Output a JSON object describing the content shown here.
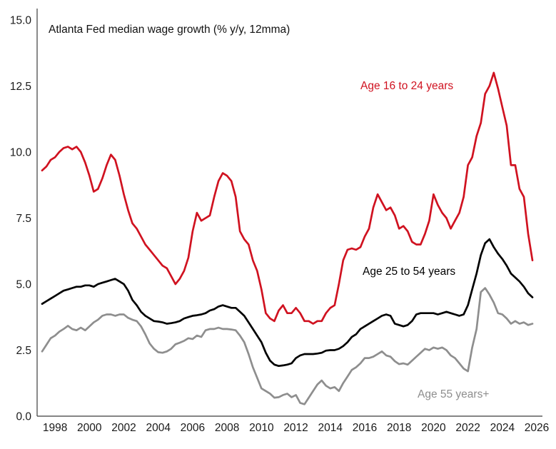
{
  "chart": {
    "title": "Atlanta Fed median wage growth (% y/y, 12mma)",
    "series_labels": {
      "age_16_24": "Age 16 to 24 years",
      "age_25_54": "Age 25 to 54 years",
      "age_55_plus": "Age 55 years+"
    },
    "colors": {
      "age_16_24": "#d01220",
      "age_25_54": "#000000",
      "age_55_plus": "#8e8e8e",
      "axis": "#3c3c3c",
      "background": "#ffffff"
    }
  },
  "chart_data": {
    "type": "line",
    "title": "Atlanta Fed median wage growth (% y/y, 12mma)",
    "xlabel": "",
    "ylabel": "",
    "xlim": [
      1996.96,
      2026.33
    ],
    "ylim": [
      0,
      15.43
    ],
    "grid": false,
    "legend_position": "inline-annotations",
    "x_ticks": [
      1998,
      2000,
      2002,
      2004,
      2006,
      2008,
      2010,
      2012,
      2014,
      2016,
      2018,
      2020,
      2022,
      2024,
      2026
    ],
    "x_tick_labels": [
      "1998",
      "2000",
      "2002",
      "2004",
      "2006",
      "2008",
      "2010",
      "2012",
      "2014",
      "2016",
      "2018",
      "2020",
      "2022",
      "2024",
      "2026"
    ],
    "y_ticks": [
      0.0,
      2.5,
      5.0,
      7.5,
      10.0,
      12.5,
      15.0
    ],
    "y_tick_labels": [
      "0.0",
      "2.5",
      "5.0",
      "7.5",
      "10.0",
      "12.5",
      "15.0"
    ],
    "x_start": 1997.25,
    "x_step": 0.25,
    "series": [
      {
        "name": "Age 16 to 24 years",
        "color": "#d01220",
        "values": [
          9.3,
          9.45,
          9.7,
          9.8,
          10.0,
          10.15,
          10.2,
          10.1,
          10.2,
          10.0,
          9.6,
          9.1,
          8.5,
          8.6,
          9.0,
          9.5,
          9.9,
          9.7,
          9.1,
          8.4,
          7.8,
          7.3,
          7.1,
          6.8,
          6.5,
          6.3,
          6.1,
          5.9,
          5.7,
          5.6,
          5.3,
          5.0,
          5.2,
          5.5,
          6.0,
          7.0,
          7.7,
          7.4,
          7.5,
          7.6,
          8.3,
          8.9,
          9.2,
          9.1,
          8.9,
          8.3,
          7.0,
          6.7,
          6.5,
          5.9,
          5.5,
          4.8,
          3.9,
          3.7,
          3.6,
          4.0,
          4.2,
          3.9,
          3.9,
          4.1,
          3.9,
          3.6,
          3.6,
          3.5,
          3.6,
          3.6,
          3.9,
          4.1,
          4.2,
          5.0,
          5.9,
          6.3,
          6.35,
          6.3,
          6.4,
          6.8,
          7.1,
          7.9,
          8.4,
          8.1,
          7.8,
          7.9,
          7.6,
          7.1,
          7.2,
          7.0,
          6.6,
          6.5,
          6.5,
          6.9,
          7.4,
          8.4,
          8.0,
          7.7,
          7.5,
          7.1,
          7.4,
          7.7,
          8.3,
          9.5,
          9.8,
          10.6,
          11.1,
          12.2,
          12.5,
          13.0,
          12.4,
          11.7,
          11.0,
          9.5,
          9.5,
          8.6,
          8.3,
          6.9,
          5.9
        ]
      },
      {
        "name": "Age 25 to 54 years",
        "color": "#000000",
        "values": [
          4.25,
          4.35,
          4.45,
          4.55,
          4.65,
          4.75,
          4.8,
          4.85,
          4.9,
          4.9,
          4.95,
          4.95,
          4.9,
          5.0,
          5.05,
          5.1,
          5.15,
          5.2,
          5.1,
          5.0,
          4.75,
          4.4,
          4.2,
          3.95,
          3.8,
          3.7,
          3.6,
          3.58,
          3.55,
          3.5,
          3.52,
          3.55,
          3.6,
          3.7,
          3.75,
          3.8,
          3.82,
          3.85,
          3.9,
          4.0,
          4.05,
          4.15,
          4.2,
          4.15,
          4.1,
          4.1,
          3.95,
          3.8,
          3.55,
          3.3,
          3.05,
          2.8,
          2.4,
          2.1,
          1.95,
          1.9,
          1.92,
          1.95,
          2.0,
          2.2,
          2.3,
          2.35,
          2.35,
          2.35,
          2.37,
          2.4,
          2.48,
          2.5,
          2.5,
          2.55,
          2.65,
          2.8,
          3.0,
          3.1,
          3.3,
          3.4,
          3.5,
          3.6,
          3.7,
          3.8,
          3.85,
          3.8,
          3.5,
          3.45,
          3.4,
          3.45,
          3.6,
          3.85,
          3.9,
          3.9,
          3.9,
          3.9,
          3.85,
          3.9,
          3.95,
          3.9,
          3.85,
          3.8,
          3.85,
          4.2,
          4.8,
          5.4,
          6.1,
          6.55,
          6.7,
          6.4,
          6.15,
          5.95,
          5.7,
          5.4,
          5.25,
          5.1,
          4.9,
          4.65,
          4.5
        ]
      },
      {
        "name": "Age 55 years+",
        "color": "#8e8e8e",
        "values": [
          2.45,
          2.7,
          2.95,
          3.05,
          3.2,
          3.3,
          3.42,
          3.3,
          3.25,
          3.35,
          3.25,
          3.4,
          3.55,
          3.65,
          3.8,
          3.85,
          3.85,
          3.8,
          3.85,
          3.85,
          3.72,
          3.65,
          3.6,
          3.4,
          3.1,
          2.75,
          2.55,
          2.42,
          2.4,
          2.45,
          2.55,
          2.72,
          2.78,
          2.85,
          2.95,
          2.92,
          3.05,
          3.0,
          3.25,
          3.3,
          3.3,
          3.35,
          3.3,
          3.3,
          3.28,
          3.25,
          3.05,
          2.8,
          2.35,
          1.85,
          1.45,
          1.05,
          0.95,
          0.85,
          0.7,
          0.72,
          0.8,
          0.85,
          0.72,
          0.8,
          0.5,
          0.45,
          0.7,
          0.95,
          1.2,
          1.35,
          1.15,
          1.05,
          1.1,
          0.95,
          1.25,
          1.5,
          1.75,
          1.85,
          2.0,
          2.2,
          2.2,
          2.25,
          2.35,
          2.45,
          2.3,
          2.25,
          2.08,
          1.97,
          2.0,
          1.95,
          2.1,
          2.25,
          2.4,
          2.55,
          2.5,
          2.6,
          2.55,
          2.6,
          2.5,
          2.3,
          2.2,
          2.0,
          1.8,
          1.7,
          2.6,
          3.3,
          4.7,
          4.85,
          4.6,
          4.3,
          3.9,
          3.85,
          3.7,
          3.5,
          3.6,
          3.5,
          3.55,
          3.45,
          3.5
        ]
      }
    ]
  }
}
